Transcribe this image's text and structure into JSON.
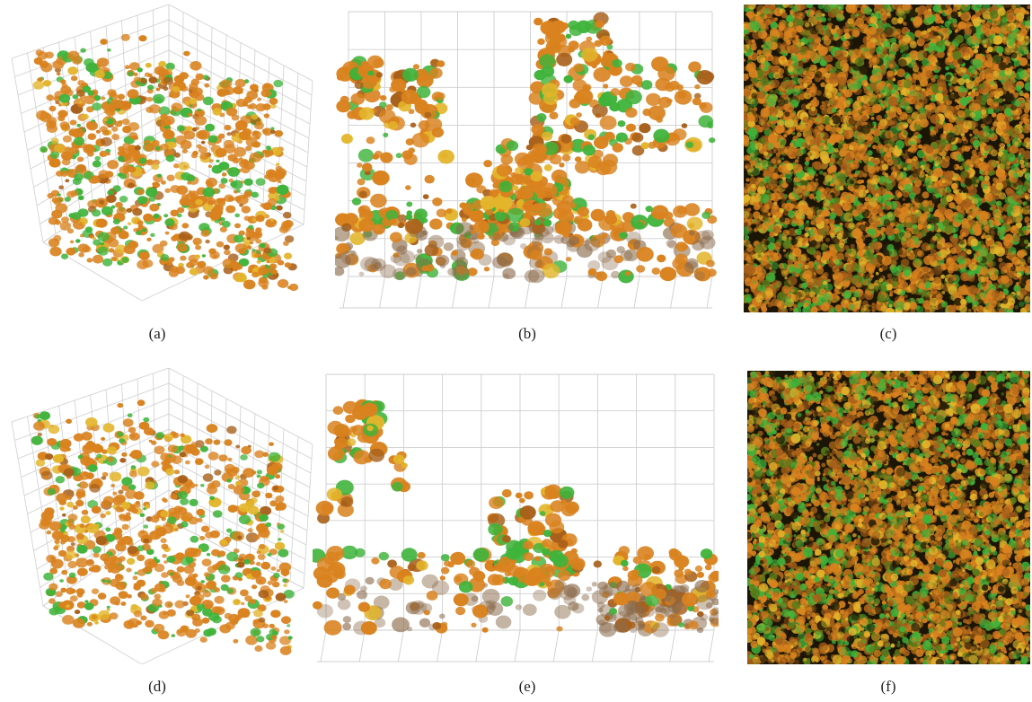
{
  "figure": {
    "panels": [
      {
        "id": "a",
        "caption": "(a)",
        "kind": "3d-biofilm-render"
      },
      {
        "id": "b",
        "caption": "(b)",
        "kind": "side-view-biofilm-render"
      },
      {
        "id": "c",
        "caption": "(c)",
        "kind": "confocal-micrograph"
      },
      {
        "id": "d",
        "caption": "(d)",
        "kind": "3d-biofilm-render"
      },
      {
        "id": "e",
        "caption": "(e)",
        "kind": "side-view-biofilm-render"
      },
      {
        "id": "f",
        "caption": "(f)",
        "kind": "confocal-micrograph"
      }
    ]
  },
  "colors": {
    "orange": "#d9821e",
    "orange_dark": "#a8601a",
    "green": "#3fb33a",
    "yellow": "#e3b52a",
    "brown_faint": "#8a6a4a",
    "grid": "#cfcfcf",
    "micro_bg": "#1b1506"
  }
}
